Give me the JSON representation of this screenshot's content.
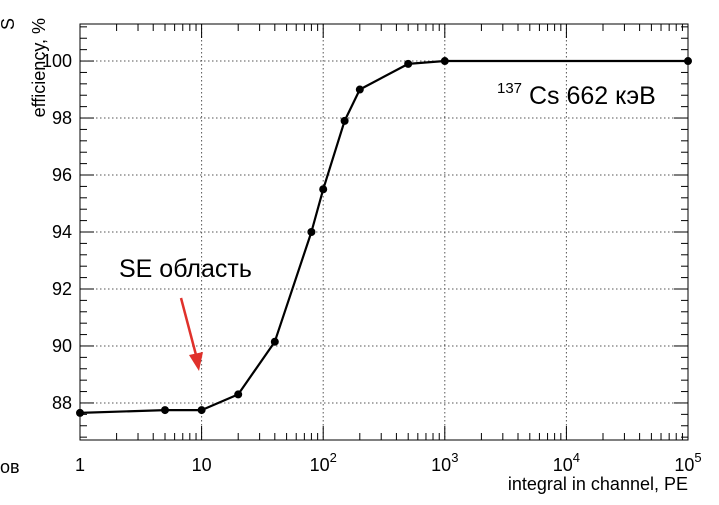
{
  "chart_data": {
    "type": "line",
    "xscale": "log",
    "xlim": [
      1,
      100000
    ],
    "ylim": [
      86.7,
      101.3
    ],
    "grid": true,
    "xlabel": "integral in channel, PE",
    "ylabel": "efficiency, %",
    "ylabel_partial": "S",
    "left_edge_fragment": "ов",
    "x_ticks": [
      {
        "value": 1,
        "base": "1",
        "exp": ""
      },
      {
        "value": 10,
        "base": "10",
        "exp": ""
      },
      {
        "value": 100,
        "base": "10",
        "exp": "2"
      },
      {
        "value": 1000,
        "base": "10",
        "exp": "3"
      },
      {
        "value": 10000,
        "base": "10",
        "exp": "4"
      },
      {
        "value": 100000,
        "base": "10",
        "exp": "5"
      }
    ],
    "y_ticks": [
      88,
      90,
      92,
      94,
      96,
      98,
      100
    ],
    "series": [
      {
        "x": [
          1,
          5,
          10,
          20,
          40,
          80,
          100,
          150,
          200,
          500,
          1000,
          100000
        ],
        "y": [
          87.65,
          87.75,
          87.75,
          88.3,
          90.15,
          94.0,
          95.5,
          97.9,
          99.0,
          99.9,
          100.0,
          100.0
        ]
      }
    ],
    "annotations": {
      "source_sup": "137",
      "source_text": "Cs 662 кэВ",
      "region_label": "SE область"
    },
    "colors": {
      "line": "#000000",
      "arrow": "#e0312b",
      "grid": "#555555"
    }
  }
}
